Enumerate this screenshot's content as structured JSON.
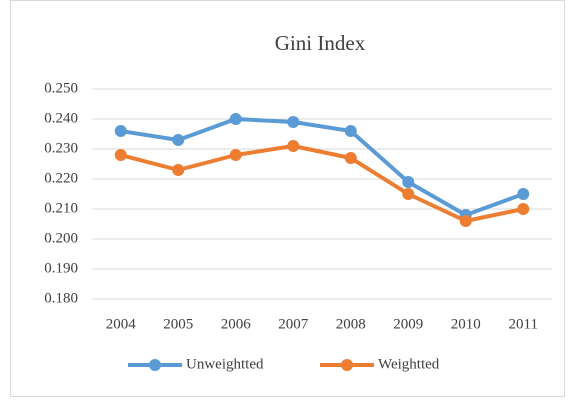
{
  "chart_data": {
    "type": "line",
    "title": "Gini Index",
    "categories": [
      "2004",
      "2005",
      "2006",
      "2007",
      "2008",
      "2009",
      "2010",
      "2011"
    ],
    "series": [
      {
        "name": "Unweightted",
        "color": "#5b9bd5",
        "values": [
          0.236,
          0.233,
          0.24,
          0.239,
          0.236,
          0.219,
          0.208,
          0.215
        ]
      },
      {
        "name": "Weightted",
        "color": "#ed7d31",
        "values": [
          0.228,
          0.223,
          0.228,
          0.231,
          0.227,
          0.215,
          0.206,
          0.21
        ]
      }
    ],
    "ylim": [
      0.18,
      0.25
    ],
    "yticks": [
      {
        "value": 0.18,
        "label": "0.180"
      },
      {
        "value": 0.19,
        "label": "0.190"
      },
      {
        "value": 0.2,
        "label": "0.200"
      },
      {
        "value": 0.21,
        "label": "0.210"
      },
      {
        "value": 0.22,
        "label": "0.220"
      },
      {
        "value": 0.23,
        "label": "0.230"
      },
      {
        "value": 0.24,
        "label": "0.240"
      },
      {
        "value": 0.25,
        "label": "0.250"
      }
    ],
    "grid": true,
    "legend": "bottom"
  }
}
